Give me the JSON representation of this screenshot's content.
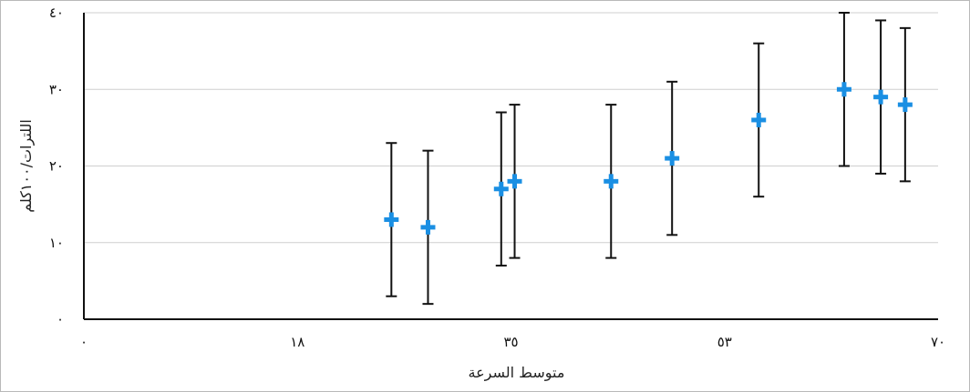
{
  "chart_data": {
    "type": "scatter",
    "title": "",
    "xlabel": "متوسط السرعة",
    "ylabel": "اللترات/١٠٠كلم",
    "xlim": [
      0,
      70
    ],
    "ylim": [
      0,
      40
    ],
    "x_ticks": [
      {
        "value": 0,
        "label": "٠"
      },
      {
        "value": 17.5,
        "label": "١٨"
      },
      {
        "value": 35,
        "label": "٣٥"
      },
      {
        "value": 52.5,
        "label": "٥٣"
      },
      {
        "value": 70,
        "label": "٧٠"
      }
    ],
    "y_ticks": [
      {
        "value": 0,
        "label": "٠"
      },
      {
        "value": 10,
        "label": "١٠"
      },
      {
        "value": 20,
        "label": "٢٠"
      },
      {
        "value": 30,
        "label": "٣٠"
      },
      {
        "value": 40,
        "label": "٤٠"
      }
    ],
    "grid": true,
    "marker": "plus",
    "marker_color": "#1a8fe3",
    "series": [
      {
        "points": [
          {
            "x": 25.2,
            "y": 13,
            "error": 10
          },
          {
            "x": 28.2,
            "y": 12,
            "error": 10
          },
          {
            "x": 34.2,
            "y": 17,
            "error": 10
          },
          {
            "x": 35.3,
            "y": 18,
            "error": 10
          },
          {
            "x": 43.2,
            "y": 18,
            "error": 10
          },
          {
            "x": 48.2,
            "y": 21,
            "error": 10
          },
          {
            "x": 55.3,
            "y": 26,
            "error": 10
          },
          {
            "x": 62.3,
            "y": 30,
            "error": 10
          },
          {
            "x": 65.3,
            "y": 29,
            "error": 10
          },
          {
            "x": 67.3,
            "y": 28,
            "error": 10
          }
        ]
      }
    ]
  }
}
